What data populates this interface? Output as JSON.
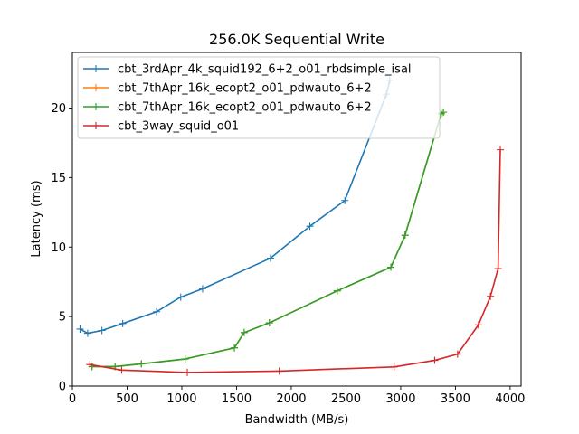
{
  "chart_data": {
    "type": "line",
    "title": "256.0K  Sequential Write",
    "xlabel": "Bandwidth (MB/s)",
    "ylabel": "Latency (ms)",
    "xlim": [
      0,
      4100
    ],
    "ylim": [
      0,
      24
    ],
    "xticks": [
      0,
      500,
      1000,
      1500,
      2000,
      2500,
      3000,
      3500,
      4000
    ],
    "yticks": [
      0,
      5,
      10,
      15,
      20
    ],
    "grid": false,
    "legend_position": "top-left",
    "series": [
      {
        "name": "cbt_3rdApr_4k_squid192_6+2_o01_rbdsimple_isal",
        "color": "#1f77b4",
        "points": [
          [
            70,
            4.1
          ],
          [
            140,
            3.8
          ],
          [
            270,
            4.0
          ],
          [
            460,
            4.5
          ],
          [
            770,
            5.35
          ],
          [
            990,
            6.4
          ],
          [
            1190,
            7.0
          ],
          [
            1810,
            9.2
          ],
          [
            2170,
            11.5
          ],
          [
            2490,
            13.35
          ],
          [
            2870,
            21.0
          ],
          [
            2900,
            22.0
          ]
        ]
      },
      {
        "name": "cbt_7thApr_16k_ecopt2_o01_pdwauto_6+2",
        "color": "#ff7f0e",
        "points": [
          [
            180,
            1.4
          ],
          [
            390,
            1.4
          ],
          [
            630,
            1.6
          ],
          [
            1030,
            1.95
          ],
          [
            1480,
            2.75
          ],
          [
            1570,
            3.85
          ],
          [
            1800,
            4.55
          ],
          [
            2420,
            6.85
          ],
          [
            2910,
            8.55
          ],
          [
            3040,
            10.85
          ],
          [
            3370,
            19.6
          ],
          [
            3390,
            19.7
          ]
        ]
      },
      {
        "name": "cbt_7thApr_16k_ecopt2_o01_pdwauto_6+2",
        "color": "#2ca02c",
        "points": [
          [
            180,
            1.4
          ],
          [
            390,
            1.4
          ],
          [
            630,
            1.6
          ],
          [
            1030,
            1.95
          ],
          [
            1480,
            2.75
          ],
          [
            1570,
            3.85
          ],
          [
            1800,
            4.55
          ],
          [
            2420,
            6.85
          ],
          [
            2910,
            8.55
          ],
          [
            3040,
            10.85
          ],
          [
            3370,
            19.6
          ],
          [
            3390,
            19.7
          ]
        ]
      },
      {
        "name": "cbt_3way_squid_o01",
        "color": "#d62728",
        "points": [
          [
            160,
            1.55
          ],
          [
            450,
            1.15
          ],
          [
            1050,
            0.98
          ],
          [
            1890,
            1.08
          ],
          [
            2940,
            1.38
          ],
          [
            3310,
            1.85
          ],
          [
            3520,
            2.3
          ],
          [
            3710,
            4.4
          ],
          [
            3820,
            6.45
          ],
          [
            3890,
            8.45
          ],
          [
            3910,
            17.0
          ]
        ]
      }
    ]
  }
}
